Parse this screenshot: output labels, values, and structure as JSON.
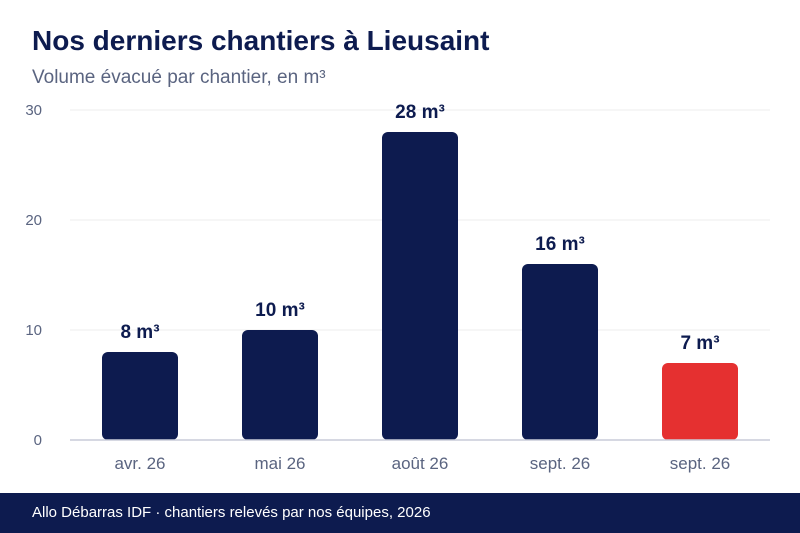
{
  "header": {
    "title": "Nos derniers chantiers à Lieusaint",
    "subtitle": "Volume évacué par chantier, en m³"
  },
  "footer": {
    "text": "Allo Débarras IDF · chantiers relevés par nos équipes, 2026"
  },
  "colors": {
    "bar": "#0d1b4f",
    "highlight": "#e53030",
    "grid": "#ececec",
    "axis": "#c9ccd8",
    "tick_label": "#5a6480",
    "value_label": "#0d1b4f"
  },
  "chart_data": {
    "type": "bar",
    "title": "Nos derniers chantiers à Lieusaint",
    "subtitle": "Volume évacué par chantier, en m³",
    "categories": [
      "avr. 26",
      "mai 26",
      "août 26",
      "sept. 26",
      "sept. 26"
    ],
    "values": [
      8,
      10,
      28,
      16,
      7
    ],
    "value_labels": [
      "8 m³",
      "10 m³",
      "28 m³",
      "16 m³",
      "7 m³"
    ],
    "highlight_index": 4,
    "ylim": [
      0,
      30
    ],
    "yticks": [
      0,
      10,
      20,
      30
    ],
    "grid": true,
    "legend": "none",
    "xlabel": "",
    "ylabel": ""
  }
}
